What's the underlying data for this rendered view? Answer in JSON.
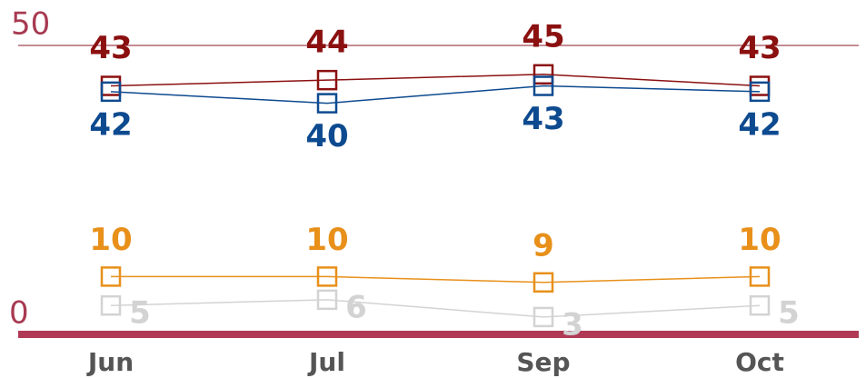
{
  "chart_data": {
    "type": "line",
    "categories": [
      "Jun",
      "Jul",
      "Sep",
      "Oct"
    ],
    "series": [
      {
        "color": "#8b1010",
        "values": [
          43,
          44,
          45,
          43
        ]
      },
      {
        "color": "#0d4a8f",
        "values": [
          42,
          40,
          43,
          42
        ]
      },
      {
        "color": "#e8901a",
        "values": [
          10,
          10,
          9,
          10
        ]
      },
      {
        "color": "#d3d3d3",
        "values": [
          5,
          6,
          3,
          5
        ]
      }
    ],
    "ylim": [
      0,
      50
    ],
    "yticks": [
      0,
      50
    ],
    "grid": true
  }
}
